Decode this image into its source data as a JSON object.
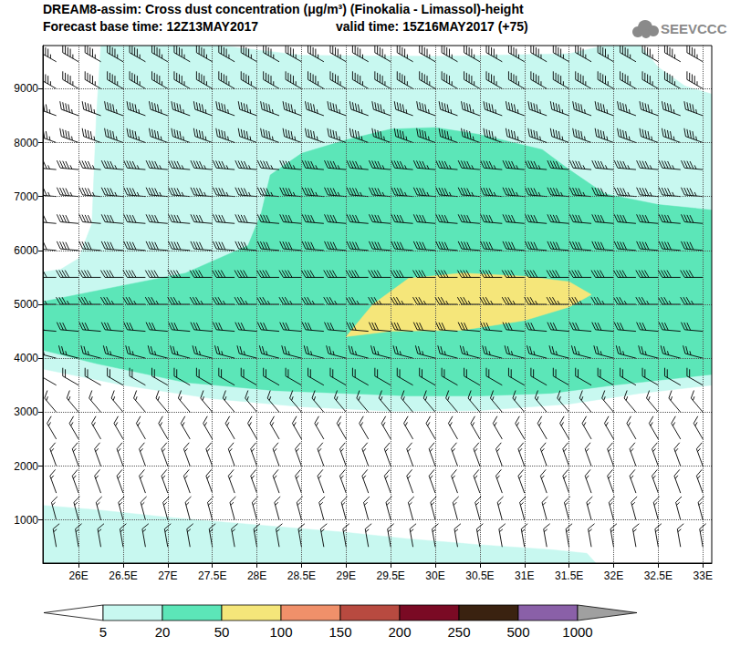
{
  "chart_data": {
    "type": "contour_cross_section",
    "title": "DREAM8-assim: Cross dust concentration (μg/m³) (Finokalia - Limassol)-height",
    "subtitle": [
      "Forecast base time: 12Z13MAY2017",
      "valid time: 15Z16MAY2017 (+75)"
    ],
    "logo": "SEEVCCC",
    "xlim": [
      25.6,
      33.1
    ],
    "xticks": [
      {
        "value": 26,
        "label": "26E"
      },
      {
        "value": 26.5,
        "label": "26.5E"
      },
      {
        "value": 27,
        "label": "27E"
      },
      {
        "value": 27.5,
        "label": "27.5E"
      },
      {
        "value": 28,
        "label": "28E"
      },
      {
        "value": 28.5,
        "label": "28.5E"
      },
      {
        "value": 29,
        "label": "29E"
      },
      {
        "value": 29.5,
        "label": "29.5E"
      },
      {
        "value": 30,
        "label": "30E"
      },
      {
        "value": 30.5,
        "label": "30.5E"
      },
      {
        "value": 31,
        "label": "31E"
      },
      {
        "value": 31.5,
        "label": "31.5E"
      },
      {
        "value": 32,
        "label": "32E"
      },
      {
        "value": 32.5,
        "label": "32.5E"
      },
      {
        "value": 33,
        "label": "33E"
      }
    ],
    "ylim": [
      200,
      9800
    ],
    "yticks": [
      1000,
      2000,
      3000,
      4000,
      5000,
      6000,
      7000,
      8000,
      9000
    ],
    "grid": true,
    "fields": [
      {
        "level": 5,
        "polygons": [
          [
            [
              25.6,
              200
            ],
            [
              25.6,
              1270
            ],
            [
              26.2,
              1190
            ],
            [
              27,
              1050
            ],
            [
              28.2,
              880
            ],
            [
              29,
              770
            ],
            [
              29.7,
              650
            ],
            [
              30.5,
              540
            ],
            [
              31.3,
              450
            ],
            [
              31.7,
              380
            ],
            [
              31.8,
              200
            ]
          ],
          [
            [
              25.6,
              3800
            ],
            [
              26.5,
              3500
            ],
            [
              27.5,
              3250
            ],
            [
              28.5,
              3100
            ],
            [
              29.5,
              3020
            ],
            [
              30.5,
              3030
            ],
            [
              31.5,
              3150
            ],
            [
              32.3,
              3350
            ],
            [
              33.1,
              3500
            ],
            [
              33.1,
              8900
            ],
            [
              32.8,
              9050
            ],
            [
              32.5,
              9400
            ],
            [
              32.3,
              9800
            ],
            [
              31.9,
              9800
            ],
            [
              31.5,
              9650
            ],
            [
              30,
              9600
            ],
            [
              28.5,
              9620
            ],
            [
              27.6,
              9800
            ],
            [
              26.25,
              9800
            ],
            [
              26.2,
              8500
            ],
            [
              26.15,
              6500
            ],
            [
              26.0,
              5850
            ],
            [
              25.8,
              5650
            ],
            [
              25.6,
              5600
            ]
          ]
        ]
      },
      {
        "level": 20,
        "polygons": [
          [
            [
              25.6,
              4150
            ],
            [
              26.2,
              3900
            ],
            [
              27.2,
              3550
            ],
            [
              28.2,
              3400
            ],
            [
              29.7,
              3300
            ],
            [
              30.5,
              3300
            ],
            [
              31.3,
              3350
            ],
            [
              32,
              3500
            ],
            [
              33.1,
              3700
            ],
            [
              33.1,
              6750
            ],
            [
              32.5,
              6850
            ],
            [
              31.9,
              7050
            ],
            [
              31.5,
              7500
            ],
            [
              31.2,
              7870
            ],
            [
              30.5,
              8150
            ],
            [
              30,
              8280
            ],
            [
              29.5,
              8250
            ],
            [
              29,
              8050
            ],
            [
              28.5,
              7800
            ],
            [
              28.15,
              7400
            ],
            [
              28.05,
              6700
            ],
            [
              27.9,
              6090
            ],
            [
              27.2,
              5580
            ],
            [
              26.2,
              5250
            ],
            [
              25.6,
              5050
            ]
          ]
        ]
      },
      {
        "level": 50,
        "polygons": [
          [
            [
              29.0,
              4400
            ],
            [
              29.5,
              4500
            ],
            [
              30.3,
              4520
            ],
            [
              31,
              4700
            ],
            [
              31.5,
              4950
            ],
            [
              31.75,
              5180
            ],
            [
              31.5,
              5420
            ],
            [
              31,
              5520
            ],
            [
              30.3,
              5580
            ],
            [
              29.7,
              5480
            ],
            [
              29.3,
              5000
            ]
          ]
        ]
      }
    ],
    "wind": {
      "lon": [
        25.75,
        26,
        26.25,
        26.5,
        26.75,
        27,
        27.25,
        27.5,
        27.75,
        28,
        28.25,
        28.5,
        28.75,
        29,
        29.25,
        29.5,
        29.75,
        30,
        30.25,
        30.5,
        30.75,
        31,
        31.25,
        31.5,
        31.75,
        32,
        32.25,
        32.5,
        32.75,
        33
      ],
      "height": [
        500,
        1000,
        1500,
        2000,
        2500,
        3000,
        3500,
        4000,
        4500,
        5000,
        5500,
        6000,
        6500,
        7000,
        7500,
        8000,
        8500,
        9000,
        9500
      ],
      "speed": [
        15,
        15,
        15,
        15,
        15,
        15,
        20,
        25,
        30,
        35,
        40,
        40,
        40,
        45,
        45,
        45,
        45,
        45,
        45
      ],
      "direction": [
        350,
        345,
        340,
        340,
        330,
        320,
        300,
        285,
        275,
        270,
        270,
        275,
        275,
        275,
        275,
        290,
        290,
        300,
        300
      ]
    },
    "colorbar": {
      "levels": [
        5,
        20,
        50,
        100,
        150,
        200,
        250,
        500,
        1000
      ],
      "colors": [
        "#ffffff",
        "#c8f8f0",
        "#5ce6b8",
        "#f5e67a",
        "#f0906a",
        "#b84a40",
        "#7a0a24",
        "#3a2210",
        "#8a60a8",
        "#a0a0a0"
      ]
    }
  }
}
